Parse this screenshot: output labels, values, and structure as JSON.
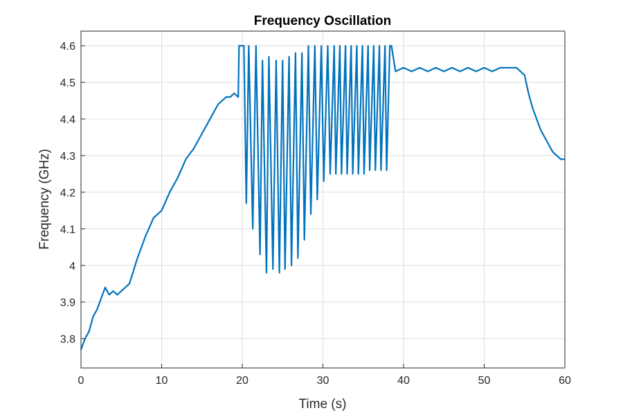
{
  "chart_data": {
    "type": "line",
    "title": "Frequency Oscillation",
    "xlabel": "Time (s)",
    "ylabel": "Frequency (GHz)",
    "xlim": [
      0,
      60
    ],
    "ylim": [
      3.72,
      4.64
    ],
    "grid": true,
    "x_ticks": [
      0,
      10,
      20,
      30,
      40,
      50,
      60
    ],
    "y_ticks": [
      3.8,
      3.9,
      4.0,
      4.1,
      4.2,
      4.3,
      4.4,
      4.5,
      4.6
    ],
    "x_tick_labels": [
      "0",
      "10",
      "20",
      "30",
      "40",
      "50",
      "60"
    ],
    "y_tick_labels": [
      "3.8",
      "3.9",
      "4",
      "4.1",
      "4.2",
      "4.3",
      "4.4",
      "4.5",
      "4.6"
    ],
    "line_color": "#0072BD",
    "series": [
      {
        "x": [
          0,
          0.5,
          1,
          1.5,
          2,
          2.5,
          3,
          3.5,
          4,
          4.5,
          5,
          5.5,
          6,
          7,
          8,
          9,
          10,
          11,
          12,
          13,
          14,
          15,
          16,
          17,
          17.5,
          18,
          18.5,
          19,
          19.5,
          19.6,
          20.2,
          20.5,
          20.8,
          21.3,
          21.7,
          22.2,
          22.5,
          23.0,
          23.3,
          23.8,
          24.2,
          24.6,
          25.0,
          25.3,
          25.8,
          26.1,
          26.6,
          26.9,
          27.4,
          27.7,
          28.2,
          28.5,
          29.0,
          29.3,
          29.8,
          30.1,
          30.6,
          30.9,
          31.4,
          31.6,
          32.1,
          32.3,
          32.8,
          33.0,
          33.5,
          33.7,
          34.2,
          34.4,
          34.9,
          35.1,
          35.6,
          35.8,
          36.3,
          36.5,
          37.0,
          37.2,
          37.7,
          37.9,
          38.3,
          38.5,
          39,
          40,
          41,
          42,
          43,
          44,
          45,
          46,
          47,
          48,
          49,
          50,
          51,
          52,
          53,
          54,
          54.5,
          55,
          55.5,
          56,
          56.5,
          57,
          57.5,
          58,
          58.5,
          59,
          59.5,
          60
        ],
        "values": [
          3.77,
          3.8,
          3.82,
          3.86,
          3.88,
          3.91,
          3.94,
          3.92,
          3.93,
          3.92,
          3.93,
          3.94,
          3.95,
          4.02,
          4.08,
          4.13,
          4.15,
          4.2,
          4.24,
          4.29,
          4.32,
          4.36,
          4.4,
          4.44,
          4.45,
          4.46,
          4.46,
          4.47,
          4.46,
          4.6,
          4.6,
          4.17,
          4.6,
          4.1,
          4.6,
          4.03,
          4.56,
          3.98,
          4.57,
          3.99,
          4.56,
          3.98,
          4.56,
          3.99,
          4.57,
          4.0,
          4.58,
          4.02,
          4.58,
          4.07,
          4.6,
          4.14,
          4.6,
          4.18,
          4.6,
          4.23,
          4.6,
          4.25,
          4.6,
          4.25,
          4.6,
          4.25,
          4.6,
          4.25,
          4.6,
          4.25,
          4.6,
          4.25,
          4.6,
          4.25,
          4.6,
          4.26,
          4.6,
          4.26,
          4.6,
          4.26,
          4.6,
          4.26,
          4.6,
          4.6,
          4.53,
          4.54,
          4.53,
          4.54,
          4.53,
          4.54,
          4.53,
          4.54,
          4.53,
          4.54,
          4.53,
          4.54,
          4.53,
          4.54,
          4.54,
          4.54,
          4.53,
          4.52,
          4.47,
          4.43,
          4.4,
          4.37,
          4.35,
          4.33,
          4.31,
          4.3,
          4.29,
          4.29
        ]
      }
    ]
  }
}
